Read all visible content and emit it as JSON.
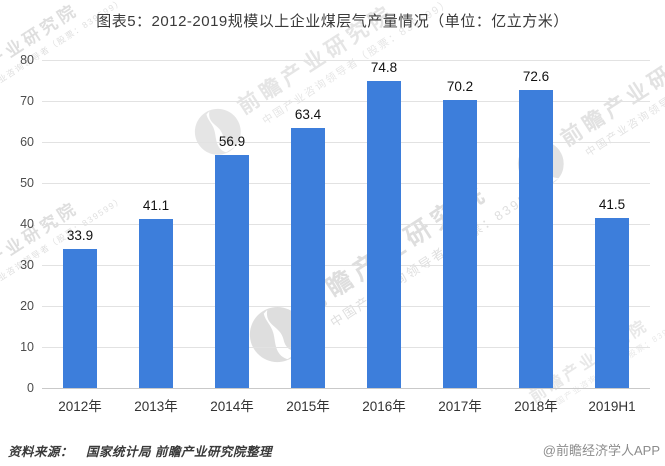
{
  "chart_data": {
    "type": "bar",
    "title": "图表5：2012-2019规模以上企业煤层气产量情况（单位：亿立方米）",
    "categories": [
      "2012年",
      "2013年",
      "2014年",
      "2015年",
      "2016年",
      "2017年",
      "2018年",
      "2019H1"
    ],
    "values": [
      33.9,
      41.1,
      56.9,
      63.4,
      74.8,
      70.2,
      72.6,
      41.5
    ],
    "unit": "亿立方米",
    "xlabel": "",
    "ylabel": "",
    "ylim": [
      0,
      80
    ],
    "ytick_step": 10,
    "grid": true,
    "legend": null,
    "bar_color": "#3D7EDB"
  },
  "footer": {
    "source": "资料来源：　国家统计局 前瞻产业研究院整理",
    "credit": "@前瞻经济学人APP"
  },
  "watermark": {
    "text": "前瞻产业研究院",
    "subtext": "中国产业咨询领导者（股票：839599）"
  }
}
